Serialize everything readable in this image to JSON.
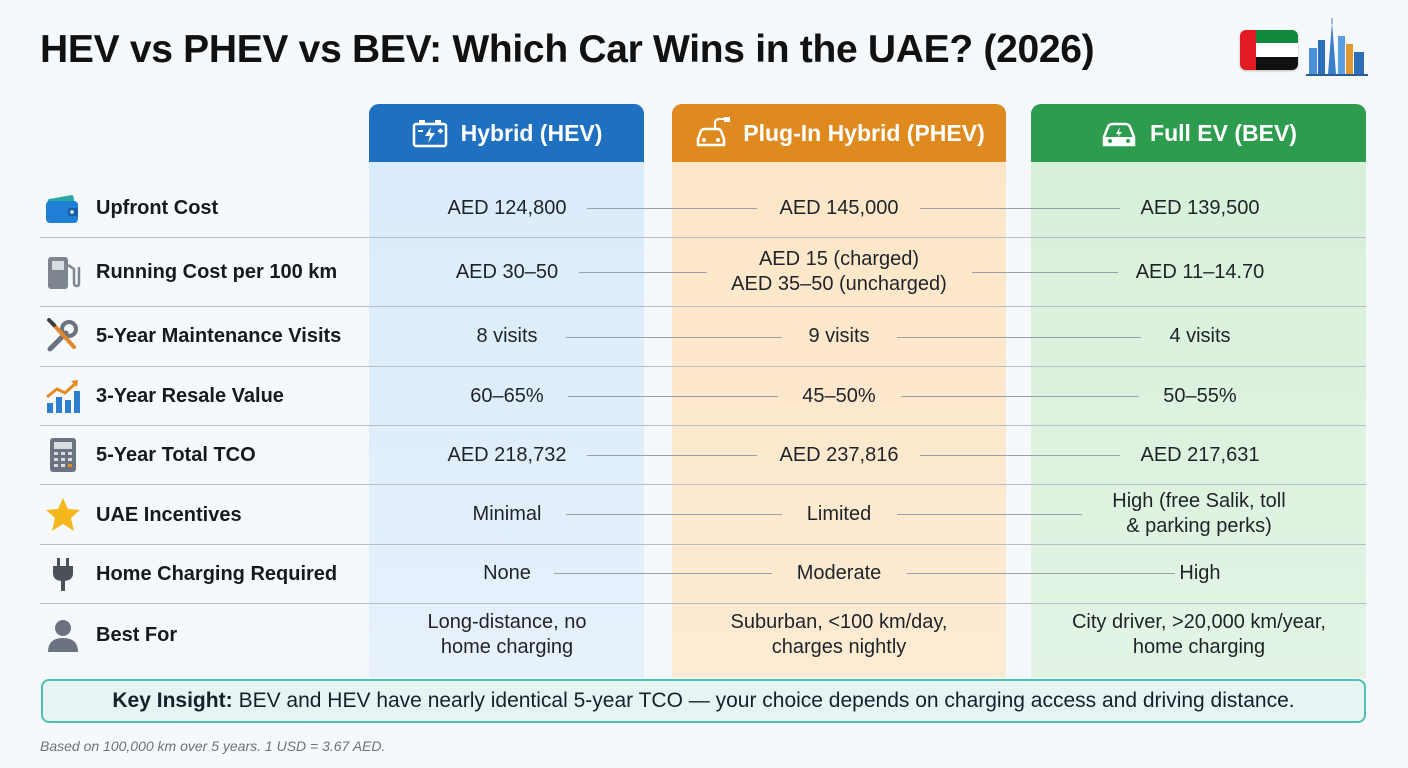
{
  "title": "HEV vs PHEV vs BEV: Which Car Wins in the UAE? (2026)",
  "colors": {
    "hev": "#1f70c1",
    "phev": "#de8a1f",
    "bev": "#2e9c4e",
    "insight_border": "#4fbfb2"
  },
  "columns": [
    {
      "label": "Hybrid (HEV)",
      "icon": "battery-icon"
    },
    {
      "label": "Plug-In Hybrid (PHEV)",
      "icon": "car-plug-icon"
    },
    {
      "label": "Full EV (BEV)",
      "icon": "car-icon"
    }
  ],
  "rows": [
    {
      "label": "Upfront Cost",
      "icon": "wallet-icon",
      "values": [
        [
          "AED 124,800"
        ],
        [
          "AED 145,000"
        ],
        [
          "AED 139,500"
        ]
      ]
    },
    {
      "label": "Running Cost per 100 km",
      "icon": "fuel-pump-icon",
      "values": [
        [
          "AED 30–50"
        ],
        [
          "AED 15 (charged)",
          "AED 35–50 (uncharged)"
        ],
        [
          "AED 11–14.70"
        ]
      ]
    },
    {
      "label": "5-Year Maintenance Visits",
      "icon": "wrench-screwdriver-icon",
      "values": [
        [
          "8 visits"
        ],
        [
          "9 visits"
        ],
        [
          "4 visits"
        ]
      ]
    },
    {
      "label": "3-Year Resale Value",
      "icon": "bar-chart-up-icon",
      "values": [
        [
          "60–65%"
        ],
        [
          "45–50%"
        ],
        [
          "50–55%"
        ]
      ]
    },
    {
      "label": "5-Year Total TCO",
      "icon": "calculator-icon",
      "values": [
        [
          "AED 218,732"
        ],
        [
          "AED 237,816"
        ],
        [
          "AED 217,631"
        ]
      ]
    },
    {
      "label": "UAE Incentives",
      "icon": "star-icon",
      "values": [
        [
          "Minimal"
        ],
        [
          "Limited"
        ],
        [
          "High (free Salik, toll",
          "& parking perks)"
        ]
      ]
    },
    {
      "label": "Home Charging Required",
      "icon": "plug-icon",
      "values": [
        [
          "None"
        ],
        [
          "Moderate"
        ],
        [
          "High"
        ]
      ]
    },
    {
      "label": "Best For",
      "icon": "person-icon",
      "values": [
        [
          "Long-distance, no",
          "home charging"
        ],
        [
          "Suburban, <100 km/day,",
          "charges nightly"
        ],
        [
          "City driver, >20,000 km/year,",
          "home charging"
        ]
      ]
    }
  ],
  "insight": {
    "label": "Key Insight:",
    "text": "BEV and HEV have nearly identical 5-year TCO — your choice depends on charging access and driving distance."
  },
  "footnote": "Based on 100,000 km over 5 years. 1 USD = 3.67 AED."
}
